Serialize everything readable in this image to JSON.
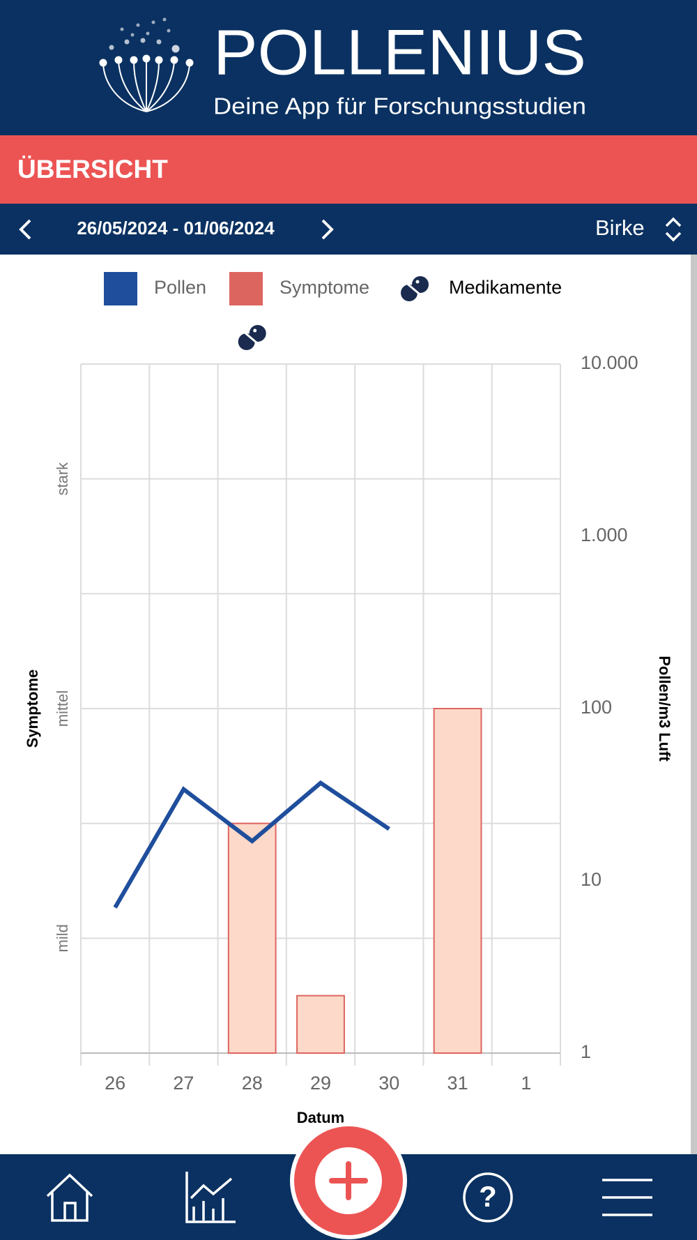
{
  "header": {
    "app_name": "POLLENIUS",
    "tagline": "Deine App für Forschungsstudien"
  },
  "section_title": "ÜBERSICHT",
  "date_range": "26/05/2024 - 01/06/2024",
  "pollen_type": "Birke",
  "chart_data": {
    "type": "combo",
    "xlabel": "Datum",
    "ylabel": "Symptome",
    "y2label": "Pollen/m3 Luft",
    "categories": [
      "26",
      "27",
      "28",
      "29",
      "30",
      "31",
      "1"
    ],
    "series": [
      {
        "name": "Pollen",
        "type": "line",
        "axis": "y2",
        "color": "#1f4e9c",
        "values": [
          7,
          34,
          17,
          37,
          20,
          null,
          null
        ]
      },
      {
        "name": "Symptome",
        "type": "bar",
        "color": "#dd6560",
        "fill": "#fdd9c9",
        "values": [
          0,
          0,
          2,
          0.5,
          0,
          3,
          0
        ]
      },
      {
        "name": "Medikamente",
        "type": "icon",
        "color": "#1a2b4f",
        "values": [
          null,
          null,
          1,
          null,
          null,
          null,
          null
        ]
      }
    ],
    "ylim": [
      0,
      6
    ],
    "yticks": [
      {
        "value": 1,
        "label": "mild"
      },
      {
        "value": 3,
        "label": "mittel"
      },
      {
        "value": 5,
        "label": "stark"
      }
    ],
    "ygrid": [
      0,
      1,
      2,
      3,
      4,
      5,
      6
    ],
    "y2scale": "log",
    "y2lim": [
      1,
      10000
    ],
    "y2ticks": [
      1,
      10,
      100,
      {
        "value": 1000,
        "label": "1.000"
      },
      {
        "value": 10000,
        "label": "10.000"
      }
    ],
    "grid": true
  }
}
